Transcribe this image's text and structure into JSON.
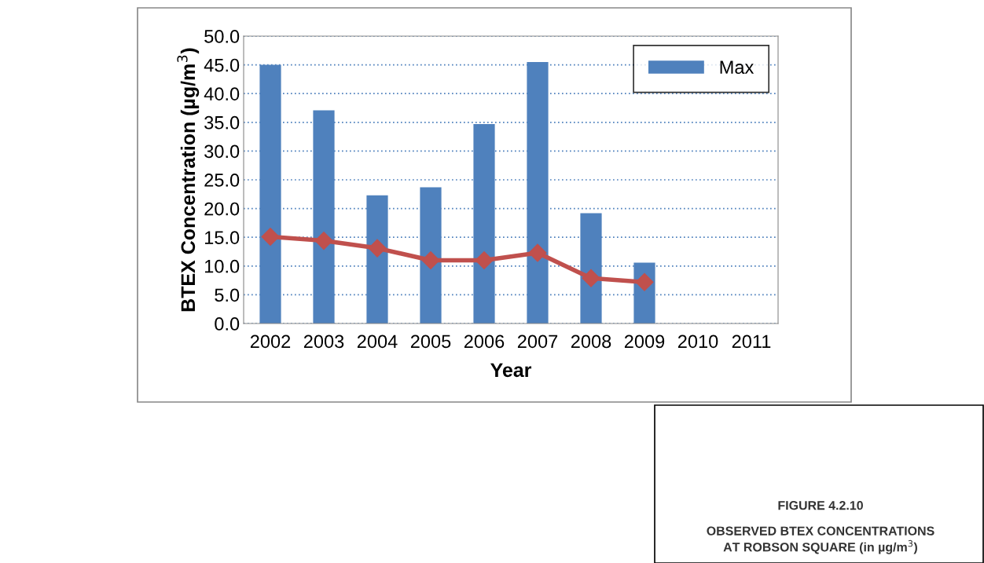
{
  "chart_data": {
    "type": "bar",
    "xlabel": "Year",
    "ylabel": "BTEX Concentration (µg/m$^{3}$)",
    "categories": [
      "2002",
      "2003",
      "2004",
      "2005",
      "2006",
      "2007",
      "2008",
      "2009",
      "2010",
      "2011"
    ],
    "series": [
      {
        "name": "Max",
        "color": "#4f81bd",
        "values": [
          45.0,
          37.1,
          22.3,
          23.7,
          34.7,
          45.5,
          19.2,
          10.6,
          null,
          null
        ]
      },
      {
        "type": "line",
        "color": "#c0504d",
        "marker": "diamond",
        "line_style": "solid",
        "values": [
          15.1,
          14.4,
          13.1,
          11.0,
          11.0,
          12.3,
          7.9,
          7.2,
          null,
          null
        ]
      }
    ],
    "ylim": [
      0,
      50
    ],
    "yticks": [
      {
        "value": 0,
        "label": "0.0"
      },
      {
        "value": 5,
        "label": "5.0"
      },
      {
        "value": 10,
        "label": "10.0"
      },
      {
        "value": 15,
        "label": "15.0"
      },
      {
        "value": 20,
        "label": "20.0"
      },
      {
        "value": 25,
        "label": "25.0"
      },
      {
        "value": 30,
        "label": "30.0"
      },
      {
        "value": 35,
        "label": "35.0"
      },
      {
        "value": 40,
        "label": "40.0"
      },
      {
        "value": 45,
        "label": "45.0"
      },
      {
        "value": 50,
        "label": "50.0"
      }
    ],
    "grid": "y",
    "legend": "top right",
    "annotations": [
      "FIGURE 4.2.10",
      "OBSERVED BTEX CONCENTRATIONS\nAT ROBSON SQUARE (in µg/m$^{3}$)"
    ]
  }
}
